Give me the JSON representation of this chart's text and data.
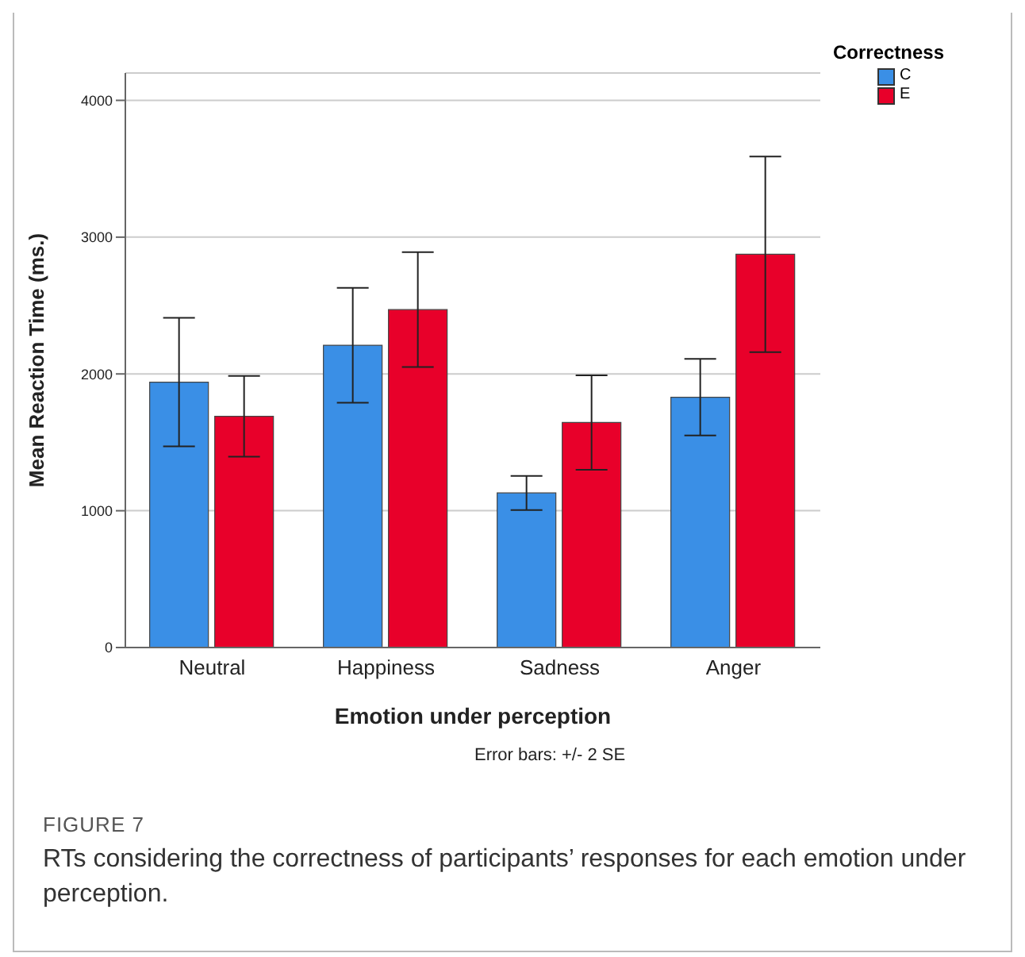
{
  "chart_data": {
    "type": "bar",
    "xlabel": "Emotion under perception",
    "ylabel": "Mean Reaction Time (ms.)",
    "legend_title": "Correctness",
    "categories": [
      "Neutral",
      "Happiness",
      "Sadness",
      "Anger"
    ],
    "series": [
      {
        "name": "C",
        "color": "#3a8fe6",
        "values": [
          1940,
          2210,
          1130,
          1830
        ],
        "errors": [
          470,
          420,
          125,
          280
        ]
      },
      {
        "name": "E",
        "color": "#e8002a",
        "values": [
          1690,
          2470,
          1645,
          2875
        ],
        "errors": [
          295,
          420,
          345,
          715
        ]
      }
    ],
    "ylim": [
      0,
      4200
    ],
    "yticks": [
      0,
      1000,
      2000,
      3000,
      4000
    ],
    "grid": "y",
    "legend": "top right",
    "annotations": [
      "Error bars: +/- 2 SE",
      "FIGURE 7",
      "RTs considering the correctness of participants’ responses for each emotion under perception."
    ]
  }
}
